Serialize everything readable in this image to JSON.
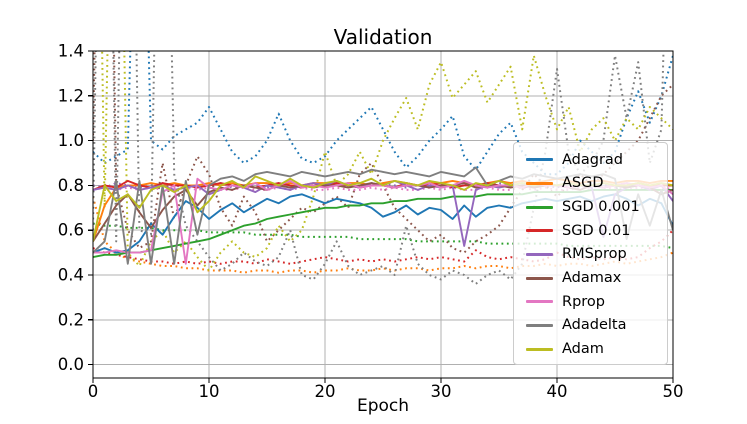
{
  "chart_data": {
    "type": "line",
    "title": "Validation",
    "xlabel": "Epoch",
    "ylabel": "",
    "xlim": [
      0,
      50
    ],
    "ylim": [
      -0.06,
      1.4
    ],
    "xtick_labels": [
      "0",
      "10",
      "20",
      "30",
      "40",
      "50"
    ],
    "xtick_values": [
      0,
      10,
      20,
      30,
      40,
      50
    ],
    "ytick_labels": [
      "0.0",
      "0.2",
      "0.4",
      "0.6",
      "0.8",
      "1.0",
      "1.2",
      "1.4"
    ],
    "ytick_values": [
      0.0,
      0.2,
      0.4,
      0.6,
      0.8,
      1.0,
      1.2,
      1.4
    ],
    "grid": true,
    "grid_color": "#b0b0b0",
    "legend_position": "center right",
    "x": [
      0,
      1,
      2,
      3,
      4,
      5,
      6,
      7,
      8,
      9,
      10,
      11,
      12,
      13,
      14,
      15,
      16,
      17,
      18,
      19,
      20,
      21,
      22,
      23,
      24,
      25,
      26,
      27,
      28,
      29,
      30,
      31,
      32,
      33,
      34,
      35,
      36,
      37,
      38,
      39,
      40,
      41,
      42,
      43,
      44,
      45,
      46,
      47,
      48,
      49,
      50
    ],
    "series": [
      {
        "name": "Adagrad",
        "color": "#1f77b4",
        "line": "solid",
        "in_legend": true,
        "values": [
          0.5,
          0.52,
          0.5,
          0.51,
          0.55,
          0.63,
          0.58,
          0.66,
          0.73,
          0.7,
          0.65,
          0.69,
          0.72,
          0.68,
          0.71,
          0.74,
          0.72,
          0.75,
          0.76,
          0.74,
          0.72,
          0.74,
          0.73,
          0.72,
          0.7,
          0.66,
          0.68,
          0.71,
          0.67,
          0.7,
          0.69,
          0.65,
          0.71,
          0.66,
          0.7,
          0.71,
          0.7,
          0.72,
          0.73,
          0.74,
          0.73,
          0.74,
          0.75,
          0.73,
          0.75,
          0.76,
          0.74,
          0.71,
          0.74,
          0.72,
          0.62
        ]
      },
      {
        "name": "ASGD",
        "color": "#ff7f0e",
        "line": "solid",
        "in_legend": true,
        "values": [
          0.55,
          0.71,
          0.79,
          0.8,
          0.8,
          0.81,
          0.8,
          0.81,
          0.8,
          0.8,
          0.81,
          0.8,
          0.81,
          0.8,
          0.81,
          0.81,
          0.8,
          0.81,
          0.8,
          0.81,
          0.81,
          0.8,
          0.81,
          0.81,
          0.8,
          0.81,
          0.82,
          0.81,
          0.8,
          0.81,
          0.81,
          0.82,
          0.81,
          0.8,
          0.81,
          0.82,
          0.81,
          0.82,
          0.81,
          0.82,
          0.83,
          0.82,
          0.81,
          0.82,
          0.82,
          0.81,
          0.82,
          0.82,
          0.81,
          0.82,
          0.82
        ]
      },
      {
        "name": "SGD 0.001",
        "color": "#2ca02c",
        "line": "solid",
        "in_legend": true,
        "values": [
          0.48,
          0.49,
          0.49,
          0.5,
          0.5,
          0.51,
          0.52,
          0.53,
          0.54,
          0.55,
          0.56,
          0.58,
          0.6,
          0.62,
          0.63,
          0.65,
          0.66,
          0.67,
          0.68,
          0.69,
          0.7,
          0.7,
          0.71,
          0.71,
          0.72,
          0.72,
          0.73,
          0.73,
          0.74,
          0.74,
          0.74,
          0.75,
          0.75,
          0.75,
          0.76,
          0.76,
          0.76,
          0.76,
          0.77,
          0.77,
          0.77,
          0.77,
          0.77,
          0.78,
          0.78,
          0.78,
          0.78,
          0.78,
          0.78,
          0.78,
          0.78
        ]
      },
      {
        "name": "SGD 0.01",
        "color": "#d62728",
        "line": "solid",
        "in_legend": true,
        "values": [
          0.78,
          0.8,
          0.79,
          0.82,
          0.8,
          0.79,
          0.81,
          0.8,
          0.8,
          0.79,
          0.8,
          0.81,
          0.8,
          0.8,
          0.79,
          0.8,
          0.81,
          0.8,
          0.79,
          0.8,
          0.8,
          0.81,
          0.8,
          0.79,
          0.8,
          0.8,
          0.79,
          0.81,
          0.8,
          0.8,
          0.81,
          0.79,
          0.8,
          0.8,
          0.81,
          0.8,
          0.8,
          0.79,
          0.8,
          0.8,
          0.8,
          0.81,
          0.8,
          0.8,
          0.79,
          0.8,
          0.8,
          0.81,
          0.8,
          0.8,
          0.8
        ]
      },
      {
        "name": "RMSprop",
        "color": "#9467bd",
        "line": "solid",
        "in_legend": true,
        "values": [
          0.78,
          0.79,
          0.78,
          0.8,
          0.78,
          0.79,
          0.8,
          0.78,
          0.79,
          0.8,
          0.76,
          0.78,
          0.8,
          0.79,
          0.77,
          0.8,
          0.79,
          0.78,
          0.8,
          0.81,
          0.8,
          0.82,
          0.8,
          0.79,
          0.81,
          0.8,
          0.82,
          0.8,
          0.78,
          0.8,
          0.79,
          0.8,
          0.53,
          0.78,
          0.8,
          0.79,
          0.8,
          0.81,
          0.79,
          0.8,
          0.8,
          0.79,
          0.8,
          0.79,
          0.57,
          0.76,
          0.79,
          0.8,
          0.78,
          0.8,
          0.73
        ]
      },
      {
        "name": "Adamax",
        "color": "#8c564b",
        "line": "solid",
        "in_legend": true,
        "values": [
          0.55,
          0.63,
          0.71,
          0.76,
          0.68,
          0.61,
          0.69,
          0.75,
          0.78,
          0.71,
          0.77,
          0.79,
          0.78,
          0.8,
          0.79,
          0.78,
          0.8,
          0.79,
          0.8,
          0.79,
          0.8,
          0.8,
          0.79,
          0.8,
          0.81,
          0.8,
          0.79,
          0.8,
          0.8,
          0.79,
          0.8,
          0.8,
          0.81,
          0.79,
          0.8,
          0.8,
          0.79,
          0.8,
          0.79,
          0.8,
          0.8,
          0.79,
          0.78,
          0.8,
          0.79,
          0.8,
          0.79,
          0.8,
          0.79,
          0.76,
          0.78
        ]
      },
      {
        "name": "Rprop",
        "color": "#e377c2",
        "line": "solid",
        "in_legend": true,
        "values": [
          0.5,
          0.5,
          0.51,
          0.5,
          0.5,
          0.51,
          0.77,
          0.8,
          0.45,
          0.83,
          0.79,
          0.78,
          0.8,
          0.79,
          0.81,
          0.78,
          0.8,
          0.82,
          0.79,
          0.8,
          0.79,
          0.8,
          0.81,
          0.79,
          0.8,
          0.8,
          0.79,
          0.8,
          0.8,
          0.81,
          0.79,
          0.8,
          0.82,
          0.8,
          0.79,
          0.8,
          0.8,
          0.79,
          0.81,
          0.8,
          0.8,
          0.79,
          0.8,
          0.8,
          0.79,
          0.8,
          0.81,
          0.8,
          0.79,
          0.8,
          0.76
        ]
      },
      {
        "name": "Adadelta",
        "color": "#7f7f7f",
        "line": "solid",
        "in_legend": true,
        "values": [
          0.5,
          0.55,
          0.82,
          0.45,
          0.82,
          0.45,
          0.8,
          0.45,
          0.82,
          0.58,
          0.8,
          0.83,
          0.84,
          0.82,
          0.85,
          0.86,
          0.85,
          0.84,
          0.86,
          0.85,
          0.84,
          0.85,
          0.86,
          0.85,
          0.87,
          0.86,
          0.85,
          0.86,
          0.85,
          0.84,
          0.86,
          0.85,
          0.84,
          0.88,
          0.8,
          0.82,
          0.84,
          0.83,
          0.85,
          0.84,
          0.83,
          0.84,
          0.85,
          0.84,
          0.85,
          0.83,
          0.56,
          0.76,
          0.62,
          0.78,
          0.6
        ]
      },
      {
        "name": "Adam",
        "color": "#bcbd22",
        "line": "solid",
        "in_legend": true,
        "values": [
          0.55,
          0.8,
          0.73,
          0.76,
          0.7,
          0.78,
          0.8,
          0.77,
          0.8,
          0.68,
          0.73,
          0.8,
          0.82,
          0.79,
          0.84,
          0.82,
          0.8,
          0.83,
          0.8,
          0.79,
          0.81,
          0.82,
          0.8,
          0.81,
          0.83,
          0.8,
          0.82,
          0.81,
          0.8,
          0.82,
          0.81,
          0.8,
          0.78,
          0.81,
          0.8,
          0.82,
          0.8,
          0.81,
          0.8,
          0.81,
          0.8,
          0.81,
          0.8,
          0.8,
          0.81,
          0.8,
          0.8,
          0.81,
          0.8,
          0.81,
          0.8
        ]
      },
      {
        "name": "Adagrad",
        "color": "#1f77b4",
        "line": "dotted",
        "in_legend": false,
        "values": [
          0.95,
          0.9,
          0.93,
          0.96,
          3.0,
          1.0,
          0.96,
          1.02,
          1.05,
          1.08,
          1.15,
          1.05,
          0.95,
          0.9,
          0.93,
          1.0,
          1.12,
          1.0,
          0.92,
          0.9,
          0.93,
          1.0,
          1.05,
          1.1,
          1.15,
          1.05,
          0.95,
          0.88,
          0.93,
          1.0,
          1.05,
          1.11,
          0.93,
          0.87,
          0.95,
          1.03,
          1.08,
          0.95,
          0.9,
          0.85,
          0.85,
          0.9,
          1.0,
          0.95,
          0.9,
          0.95,
          1.1,
          1.22,
          1.08,
          1.2,
          1.38
        ]
      },
      {
        "name": "ASGD",
        "color": "#ff7f0e",
        "line": "dotted",
        "in_legend": false,
        "values": [
          0.75,
          0.55,
          0.5,
          0.47,
          0.46,
          0.45,
          0.44,
          0.44,
          0.43,
          0.43,
          0.42,
          0.42,
          0.42,
          0.41,
          0.42,
          0.42,
          0.41,
          0.42,
          0.42,
          0.41,
          0.42,
          0.42,
          0.43,
          0.42,
          0.42,
          0.43,
          0.42,
          0.43,
          0.43,
          0.42,
          0.43,
          0.43,
          0.44,
          0.43,
          0.44,
          0.44,
          0.43,
          0.44,
          0.44,
          0.45,
          0.44,
          0.45,
          0.45,
          0.44,
          0.45,
          0.46,
          0.45,
          0.46,
          0.47,
          0.48,
          0.5
        ]
      },
      {
        "name": "SGD 0.001",
        "color": "#2ca02c",
        "line": "dotted",
        "in_legend": false,
        "values": [
          0.63,
          0.62,
          0.62,
          0.61,
          0.61,
          0.61,
          0.6,
          0.6,
          0.6,
          0.6,
          0.59,
          0.59,
          0.59,
          0.59,
          0.58,
          0.58,
          0.58,
          0.58,
          0.57,
          0.57,
          0.57,
          0.57,
          0.57,
          0.56,
          0.56,
          0.56,
          0.56,
          0.56,
          0.55,
          0.55,
          0.55,
          0.55,
          0.55,
          0.55,
          0.54,
          0.54,
          0.54,
          0.54,
          0.54,
          0.54,
          0.54,
          0.53,
          0.53,
          0.53,
          0.53,
          0.53,
          0.53,
          0.53,
          0.53,
          0.53,
          0.52
        ]
      },
      {
        "name": "SGD 0.01",
        "color": "#d62728",
        "line": "dotted",
        "in_legend": false,
        "values": [
          0.52,
          0.5,
          0.49,
          0.48,
          0.47,
          0.46,
          0.46,
          0.45,
          0.46,
          0.45,
          0.46,
          0.45,
          0.46,
          0.46,
          0.45,
          0.47,
          0.46,
          0.45,
          0.46,
          0.47,
          0.48,
          0.47,
          0.46,
          0.47,
          0.46,
          0.47,
          0.46,
          0.47,
          0.48,
          0.47,
          0.48,
          0.47,
          0.46,
          0.51,
          0.48,
          0.47,
          0.48,
          0.47,
          0.46,
          0.47,
          0.5,
          0.48,
          0.47,
          0.48,
          0.47,
          0.48,
          0.47,
          0.48,
          0.52,
          0.55,
          0.6
        ]
      },
      {
        "name": "RMSprop",
        "color": "#9467bd",
        "line": "dotted",
        "in_legend": false,
        "values": [
          0.8,
          0.79,
          0.81,
          0.8,
          0.79,
          0.8,
          0.81,
          0.8,
          0.79,
          0.8,
          0.8,
          0.81,
          0.79,
          0.8,
          0.8,
          0.79,
          0.81,
          0.8,
          0.79,
          0.8,
          0.8,
          0.81,
          0.8,
          0.79,
          0.8,
          0.81,
          0.8,
          0.79,
          0.8,
          0.8,
          0.81,
          0.79,
          0.8,
          0.8,
          0.79,
          0.81,
          0.8,
          0.79,
          0.8,
          0.8,
          0.79,
          0.81,
          0.8,
          0.79,
          0.8,
          0.8,
          0.81,
          0.8,
          0.79,
          0.8,
          0.8
        ]
      },
      {
        "name": "Adamax",
        "color": "#8c564b",
        "line": "dotted",
        "in_legend": false,
        "values": [
          1.0,
          4.0,
          0.8,
          0.6,
          0.52,
          0.55,
          0.9,
          0.65,
          0.8,
          0.93,
          0.85,
          0.7,
          0.62,
          0.75,
          0.68,
          0.55,
          0.6,
          0.65,
          0.7,
          0.68,
          0.72,
          0.75,
          0.7,
          0.85,
          0.9,
          0.8,
          0.7,
          0.65,
          0.6,
          0.55,
          0.58,
          0.52,
          0.5,
          0.55,
          0.58,
          0.62,
          0.7,
          0.78,
          0.85,
          0.8,
          0.75,
          0.8,
          0.85,
          0.8,
          0.85,
          0.9,
          0.95,
          1.0,
          1.1,
          1.2,
          1.25
        ]
      },
      {
        "name": "Rprop",
        "color": "#e377c2",
        "line": "dotted",
        "in_legend": false,
        "values": [
          0.78,
          0.79,
          0.78,
          0.79,
          0.78,
          0.79,
          0.78,
          0.78,
          0.79,
          0.78,
          0.79,
          0.78,
          0.78,
          0.79,
          0.78,
          0.78,
          0.79,
          0.78,
          0.79,
          0.78,
          0.78,
          0.79,
          0.78,
          0.78,
          0.79,
          0.78,
          0.79,
          0.78,
          0.78,
          0.79,
          0.78,
          0.79,
          0.78,
          0.78,
          0.79,
          0.78,
          0.78,
          0.79,
          0.78,
          0.79,
          0.78,
          0.78,
          0.79,
          0.78,
          0.78,
          0.79,
          0.78,
          0.79,
          0.78,
          0.78,
          0.79
        ]
      },
      {
        "name": "Adadelta",
        "color": "#7f7f7f",
        "line": "dotted",
        "in_legend": false,
        "values": [
          0.6,
          4.0,
          0.55,
          3.8,
          0.6,
          0.58,
          3.5,
          0.85,
          0.62,
          0.55,
          0.48,
          0.42,
          0.45,
          0.5,
          0.46,
          0.44,
          0.48,
          0.6,
          0.4,
          0.38,
          0.45,
          0.55,
          0.44,
          0.4,
          0.42,
          0.44,
          0.4,
          0.62,
          0.45,
          0.4,
          0.38,
          0.42,
          0.4,
          0.36,
          0.4,
          0.42,
          0.38,
          0.45,
          0.7,
          0.95,
          1.32,
          0.95,
          0.85,
          0.9,
          1.0,
          1.38,
          1.1,
          1.35,
          0.9,
          1.05,
          3.0
        ]
      },
      {
        "name": "Adam",
        "color": "#bcbd22",
        "line": "dotted",
        "in_legend": false,
        "values": [
          4.0,
          0.7,
          3.5,
          0.5,
          0.44,
          0.55,
          0.6,
          0.5,
          0.55,
          0.48,
          0.42,
          0.5,
          0.55,
          0.5,
          0.48,
          0.52,
          0.62,
          0.55,
          0.6,
          0.75,
          0.95,
          0.8,
          0.85,
          0.95,
          0.85,
          1.0,
          1.1,
          1.19,
          1.05,
          1.25,
          1.35,
          1.19,
          1.25,
          1.31,
          1.17,
          1.25,
          1.33,
          1.05,
          1.38,
          1.2,
          1.05,
          1.15,
          0.95,
          1.05,
          1.1,
          1.0,
          1.1,
          1.05,
          1.15,
          1.1,
          1.05
        ]
      }
    ]
  }
}
